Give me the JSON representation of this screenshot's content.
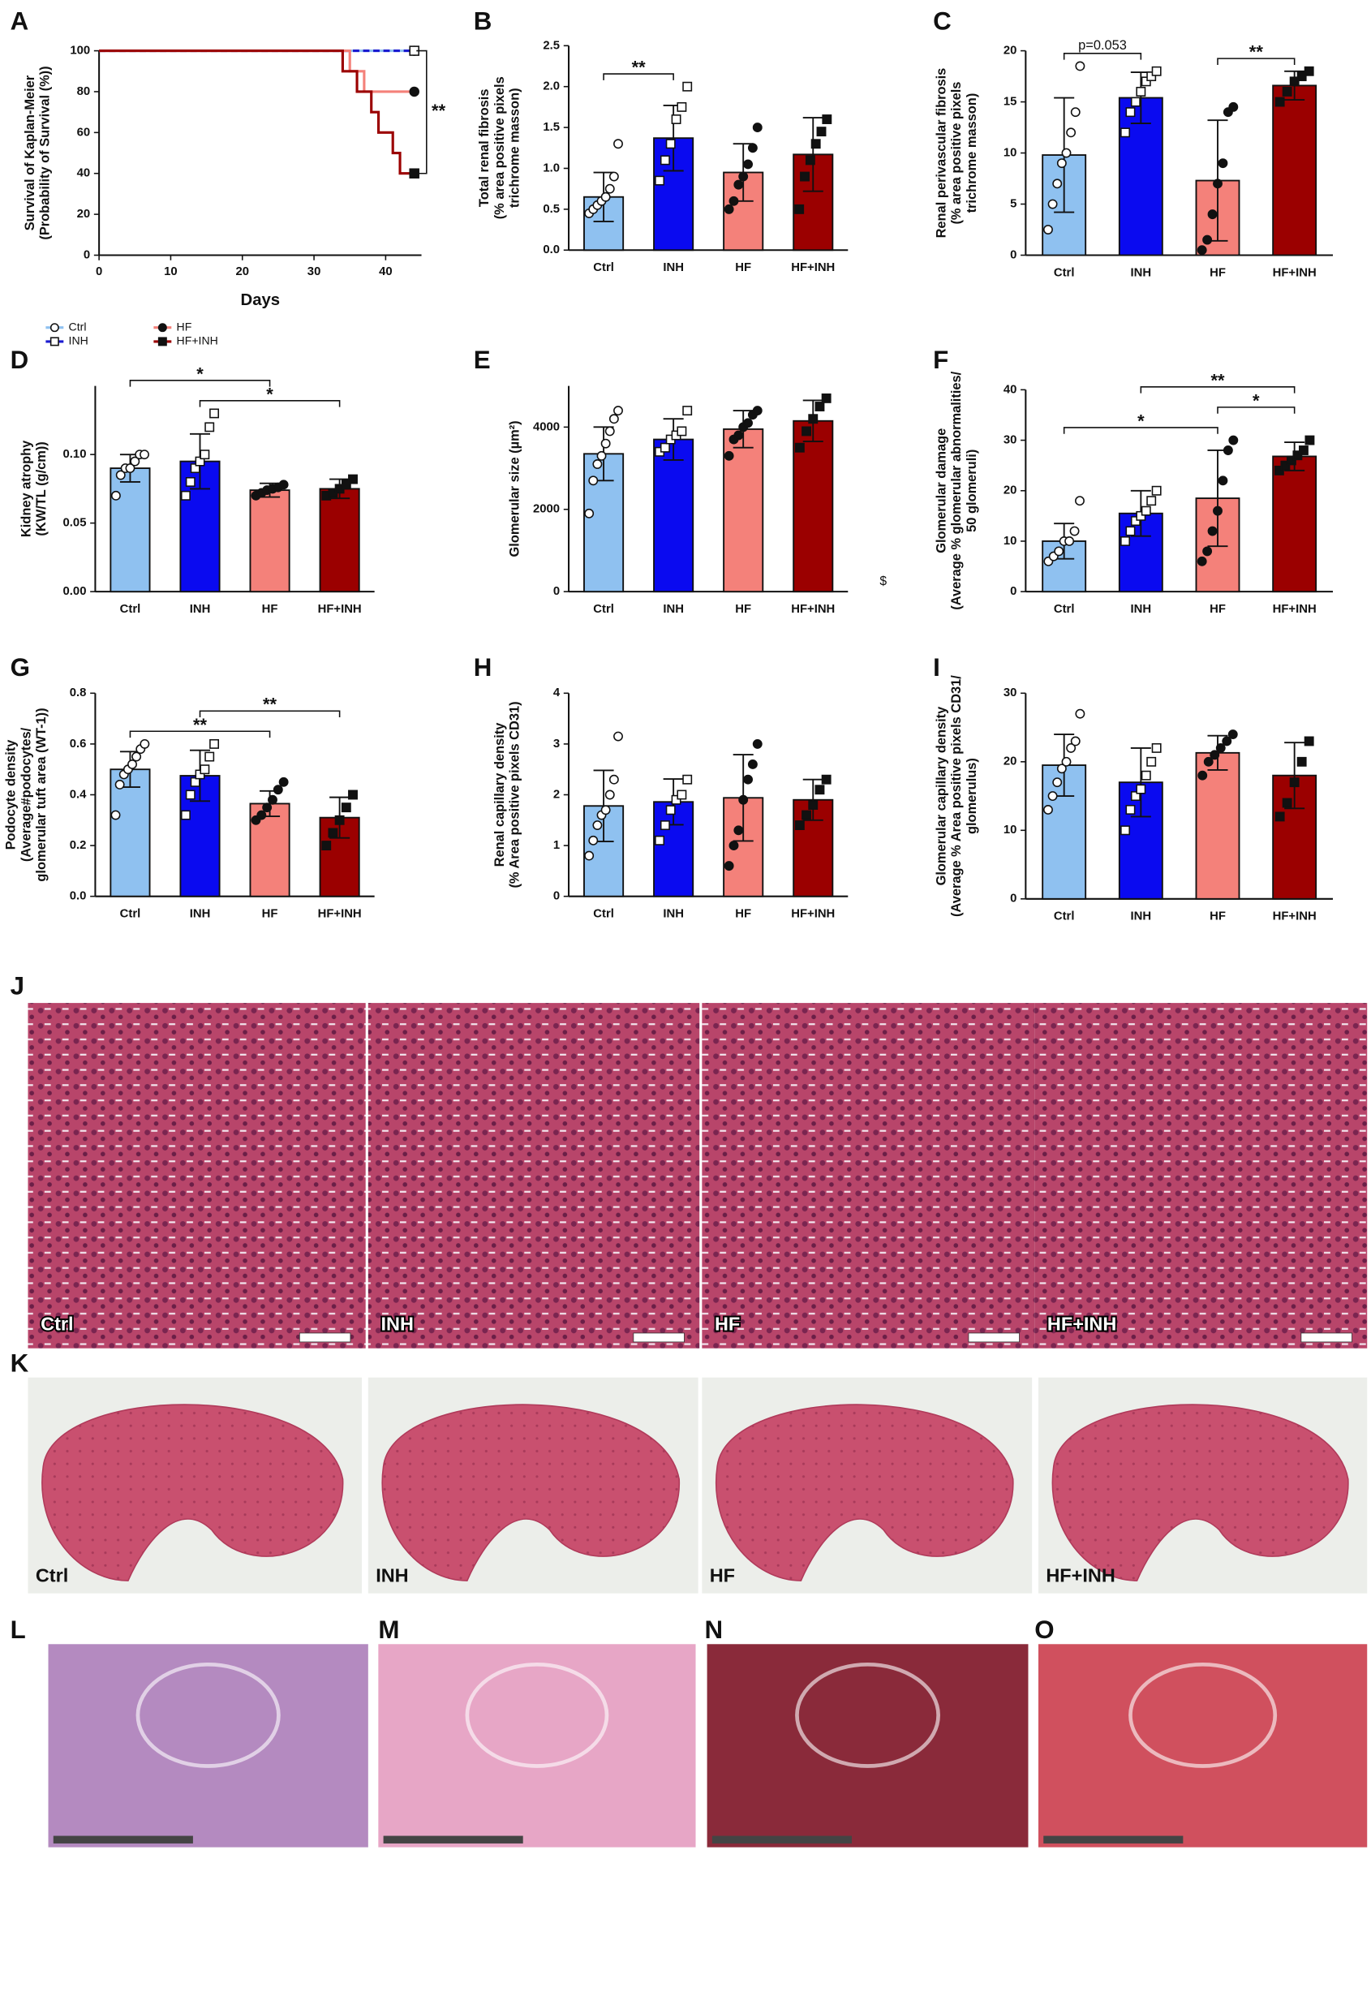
{
  "chart_data": [
    {
      "type": "line",
      "xlabel": "Days",
      "ylabel": [
        "Survival of Kaplan-Meier",
        "(Probability of Survival (%))"
      ],
      "xlim": [
        0,
        45
      ],
      "ylim": [
        0,
        100
      ],
      "xticks": [
        0,
        10,
        20,
        30,
        40
      ],
      "yticks": [
        0,
        20,
        40,
        60,
        80,
        100
      ],
      "annotation": "**",
      "series": [
        {
          "name": "Ctrl",
          "color": "#8fc1f0",
          "marker": "open-circle",
          "x": [
            0,
            44
          ],
          "y": [
            100,
            100
          ]
        },
        {
          "name": "INH",
          "color": "#1a1ad0",
          "marker": "open-square",
          "dashed": true,
          "x": [
            0,
            44
          ],
          "y": [
            100,
            100
          ]
        },
        {
          "name": "HF",
          "color": "#f4817a",
          "marker": "filled-circle",
          "x": [
            0,
            35,
            35,
            37,
            37,
            44
          ],
          "y": [
            100,
            100,
            90,
            90,
            80,
            80
          ]
        },
        {
          "name": "HF+INH",
          "color": "#9b0000",
          "marker": "filled-square",
          "x": [
            0,
            34,
            34,
            36,
            36,
            38,
            38,
            39,
            39,
            41,
            41,
            42,
            42,
            44
          ],
          "y": [
            100,
            100,
            90,
            90,
            80,
            80,
            70,
            70,
            60,
            60,
            50,
            50,
            40,
            40
          ]
        }
      ]
    },
    {
      "type": "bar",
      "ylabel": [
        "Total renal fibrosis",
        "(% area positive pixels",
        "trichrome masson)"
      ],
      "categories": [
        "Ctrl",
        "INH",
        "HF",
        "HF+INH"
      ],
      "colors": [
        "#8fc1f0",
        "#0a0af0",
        "#f4817a",
        "#9b0000"
      ],
      "markers": [
        "open-circle",
        "open-square",
        "filled-circle",
        "filled-square"
      ],
      "ylim": [
        0,
        2.5
      ],
      "yticks": [
        {
          "value": 0,
          "label": "0.0"
        },
        0.5,
        {
          "value": 1,
          "label": "1.0"
        },
        1.5,
        {
          "value": 2,
          "label": "2.0"
        },
        2.5
      ],
      "values": [
        0.65,
        1.37,
        0.95,
        1.17
      ],
      "errors": [
        0.3,
        0.4,
        0.35,
        0.45
      ],
      "points": [
        [
          0.45,
          0.5,
          0.55,
          0.6,
          0.65,
          0.75,
          0.9,
          1.3
        ],
        [
          0.85,
          1.1,
          1.3,
          1.6,
          1.75,
          2.0
        ],
        [
          0.5,
          0.6,
          0.8,
          0.9,
          1.05,
          1.25,
          1.5
        ],
        [
          0.5,
          0.9,
          1.1,
          1.3,
          1.45,
          1.6
        ]
      ],
      "brackets": [
        {
          "from": 0,
          "to": 1,
          "label": "**"
        }
      ]
    },
    {
      "type": "bar",
      "ylabel": [
        "Renal perivascular fibrosis",
        "(% area positive pixels",
        "trichrome masson)"
      ],
      "categories": [
        "Ctrl",
        "INH",
        "HF",
        "HF+INH"
      ],
      "colors": [
        "#8fc1f0",
        "#0a0af0",
        "#f4817a",
        "#9b0000"
      ],
      "markers": [
        "open-circle",
        "open-square",
        "filled-circle",
        "filled-square"
      ],
      "ylim": [
        0,
        20
      ],
      "yticks": [
        0,
        5,
        10,
        15,
        20
      ],
      "values": [
        9.8,
        15.4,
        7.3,
        16.6
      ],
      "errors": [
        5.6,
        2.5,
        5.9,
        1.4
      ],
      "points": [
        [
          2.5,
          5,
          7,
          9,
          10,
          12,
          14,
          18.5
        ],
        [
          12,
          14,
          15,
          16,
          17,
          17.5,
          18
        ],
        [
          0.5,
          1.5,
          4,
          7,
          9,
          14,
          14.5
        ],
        [
          15,
          16,
          17,
          17.5,
          18
        ]
      ],
      "brackets": [
        {
          "from": 0,
          "to": 1,
          "label": "p=0.053"
        },
        {
          "from": 2,
          "to": 3,
          "label": "**"
        }
      ]
    },
    {
      "type": "bar",
      "ylabel": [
        "Kidney atrophy",
        "(KW/TL (g/cm))"
      ],
      "categories": [
        "Ctrl",
        "INH",
        "HF",
        "HF+INH"
      ],
      "colors": [
        "#8fc1f0",
        "#0a0af0",
        "#f4817a",
        "#9b0000"
      ],
      "markers": [
        "open-circle",
        "open-square",
        "filled-circle",
        "filled-square"
      ],
      "ylim": [
        0,
        0.15
      ],
      "yticks": [
        {
          "value": 0,
          "label": "0.00"
        },
        0.05,
        {
          "value": 0.1,
          "label": "0.10"
        }
      ],
      "values": [
        0.09,
        0.095,
        0.074,
        0.075
      ],
      "errors": [
        0.01,
        0.02,
        0.005,
        0.007
      ],
      "points": [
        [
          0.07,
          0.085,
          0.09,
          0.09,
          0.095,
          0.1,
          0.1
        ],
        [
          0.07,
          0.08,
          0.09,
          0.095,
          0.1,
          0.12,
          0.13
        ],
        [
          0.07,
          0.072,
          0.074,
          0.075,
          0.076,
          0.078
        ],
        [
          0.07,
          0.072,
          0.075,
          0.078,
          0.082
        ]
      ],
      "brackets": [
        {
          "from": 1,
          "to": 3,
          "label": "*"
        },
        {
          "from": 0,
          "to": 2,
          "label": "*"
        }
      ]
    },
    {
      "type": "bar",
      "ylabel": [
        "Glomerular size (µm²)"
      ],
      "annotation": "$",
      "categories": [
        "Ctrl",
        "INH",
        "HF",
        "HF+INH"
      ],
      "colors": [
        "#8fc1f0",
        "#0a0af0",
        "#f4817a",
        "#9b0000"
      ],
      "markers": [
        "open-circle",
        "open-square",
        "filled-circle",
        "filled-square"
      ],
      "ylim": [
        0,
        5000
      ],
      "yticks": [
        0,
        2000,
        4000
      ],
      "values": [
        3350,
        3700,
        3950,
        4150
      ],
      "errors": [
        650,
        500,
        450,
        500
      ],
      "points": [
        [
          1900,
          2700,
          3100,
          3300,
          3600,
          3900,
          4200,
          4400
        ],
        [
          3400,
          3500,
          3700,
          3800,
          3900,
          4400
        ],
        [
          3300,
          3700,
          3800,
          4000,
          4100,
          4300,
          4400
        ],
        [
          3500,
          3900,
          4200,
          4500,
          4700
        ]
      ],
      "brackets": []
    },
    {
      "type": "bar",
      "ylabel": [
        "Glomerular damage",
        "(Average % glomerular abnormalities/",
        "50 glomeruli)"
      ],
      "categories": [
        "Ctrl",
        "INH",
        "HF",
        "HF+INH"
      ],
      "colors": [
        "#8fc1f0",
        "#0a0af0",
        "#f4817a",
        "#9b0000"
      ],
      "markers": [
        "open-circle",
        "open-square",
        "filled-circle",
        "filled-square"
      ],
      "ylim": [
        0,
        40
      ],
      "yticks": [
        0,
        10,
        20,
        30,
        40
      ],
      "values": [
        10,
        15.5,
        18.5,
        26.8
      ],
      "errors": [
        3.5,
        4.5,
        9.5,
        2.8
      ],
      "points": [
        [
          6,
          7,
          8,
          10,
          10,
          12,
          18
        ],
        [
          10,
          12,
          14,
          15,
          16,
          18,
          20
        ],
        [
          6,
          8,
          12,
          16,
          22,
          28,
          30
        ],
        [
          24,
          25,
          26,
          27,
          28,
          30
        ]
      ],
      "brackets": [
        {
          "from": 0,
          "to": 2,
          "label": "*"
        },
        {
          "from": 2,
          "to": 3,
          "label": "*"
        },
        {
          "from": 1,
          "to": 3,
          "label": "**"
        }
      ]
    },
    {
      "type": "bar",
      "ylabel": [
        "Podocyte density",
        "(Average#podocytes/",
        "glomerular tuft area (WT-1))"
      ],
      "categories": [
        "Ctrl",
        "INH",
        "HF",
        "HF+INH"
      ],
      "colors": [
        "#8fc1f0",
        "#0a0af0",
        "#f4817a",
        "#9b0000"
      ],
      "markers": [
        "open-circle",
        "open-square",
        "filled-circle",
        "filled-square"
      ],
      "ylim": [
        0,
        0.8
      ],
      "yticks": [
        {
          "value": 0,
          "label": "0.0"
        },
        0.2,
        0.4,
        0.6,
        0.8
      ],
      "values": [
        0.5,
        0.475,
        0.365,
        0.31
      ],
      "errors": [
        0.07,
        0.1,
        0.05,
        0.08
      ],
      "points": [
        [
          0.32,
          0.44,
          0.48,
          0.5,
          0.52,
          0.55,
          0.58,
          0.6
        ],
        [
          0.32,
          0.4,
          0.45,
          0.48,
          0.5,
          0.55,
          0.6
        ],
        [
          0.3,
          0.32,
          0.35,
          0.38,
          0.42,
          0.45
        ],
        [
          0.2,
          0.25,
          0.3,
          0.35,
          0.4
        ]
      ],
      "brackets": [
        {
          "from": 0,
          "to": 2,
          "label": "**"
        },
        {
          "from": 1,
          "to": 3,
          "label": "**"
        }
      ]
    },
    {
      "type": "bar",
      "ylabel": [
        "Renal capillary density",
        "(% Area positive pixels CD31)"
      ],
      "categories": [
        "Ctrl",
        "INH",
        "HF",
        "HF+INH"
      ],
      "colors": [
        "#8fc1f0",
        "#0a0af0",
        "#f4817a",
        "#9b0000"
      ],
      "markers": [
        "open-circle",
        "open-square",
        "filled-circle",
        "filled-square"
      ],
      "ylim": [
        0,
        4
      ],
      "yticks": [
        0,
        1,
        2,
        3,
        4
      ],
      "values": [
        1.78,
        1.86,
        1.94,
        1.9
      ],
      "errors": [
        0.7,
        0.45,
        0.85,
        0.4
      ],
      "points": [
        [
          0.8,
          1.1,
          1.4,
          1.6,
          1.7,
          2.0,
          2.3,
          3.15
        ],
        [
          1.1,
          1.4,
          1.7,
          1.9,
          2.0,
          2.3
        ],
        [
          0.6,
          1.0,
          1.3,
          1.9,
          2.3,
          2.6,
          3.0
        ],
        [
          1.4,
          1.6,
          1.8,
          2.1,
          2.3
        ]
      ],
      "brackets": []
    },
    {
      "type": "bar",
      "ylabel": [
        "Glomerular capillary density",
        "(Average % Area positive pixels CD31/",
        "glomerulus)"
      ],
      "categories": [
        "Ctrl",
        "INH",
        "HF",
        "HF+INH"
      ],
      "colors": [
        "#8fc1f0",
        "#0a0af0",
        "#f4817a",
        "#9b0000"
      ],
      "markers": [
        "open-circle",
        "open-square",
        "filled-circle",
        "filled-square"
      ],
      "ylim": [
        0,
        30
      ],
      "yticks": [
        0,
        10,
        20,
        30
      ],
      "values": [
        19.5,
        17,
        21.3,
        18
      ],
      "errors": [
        4.5,
        5,
        2.5,
        4.8
      ],
      "points": [
        [
          13,
          15,
          17,
          19,
          20,
          22,
          23,
          27
        ],
        [
          10,
          13,
          15,
          16,
          18,
          20,
          22
        ],
        [
          18,
          20,
          21,
          22,
          23,
          24
        ],
        [
          12,
          14,
          17,
          20,
          23
        ]
      ],
      "brackets": []
    }
  ],
  "panel_letters": [
    "A",
    "B",
    "C",
    "D",
    "E",
    "F",
    "G",
    "H",
    "I",
    "J",
    "K",
    "L",
    "M",
    "N",
    "O"
  ],
  "image_panels": {
    "J": [
      "Ctrl",
      "INH",
      "HF",
      "HF+INH"
    ],
    "K": [
      "Ctrl",
      "INH",
      "HF",
      "HF+INH"
    ]
  }
}
